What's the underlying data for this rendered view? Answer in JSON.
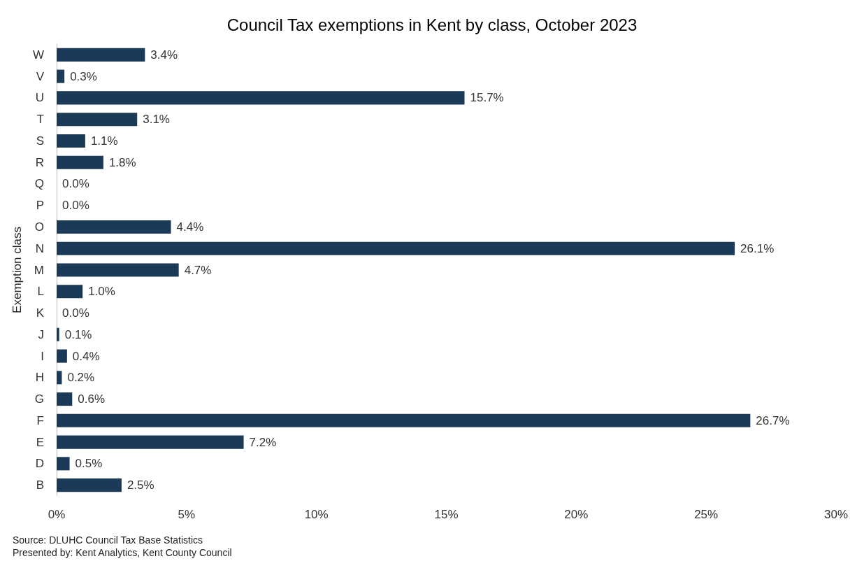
{
  "chart_data": {
    "type": "bar",
    "orientation": "horizontal",
    "title": "Council Tax exemptions in Kent by class, October 2023",
    "ylabel": "Exemption class",
    "categories": [
      "W",
      "V",
      "U",
      "T",
      "S",
      "R",
      "Q",
      "P",
      "O",
      "N",
      "M",
      "L",
      "K",
      "J",
      "I",
      "H",
      "G",
      "F",
      "E",
      "D",
      "B"
    ],
    "values": [
      3.4,
      0.3,
      15.7,
      3.1,
      1.1,
      1.8,
      0.0,
      0.0,
      4.4,
      26.1,
      4.7,
      1.0,
      0.0,
      0.1,
      0.4,
      0.2,
      0.6,
      26.7,
      7.2,
      0.5,
      2.5
    ],
    "value_labels": [
      "3.4%",
      "0.3%",
      "15.7%",
      "3.1%",
      "1.1%",
      "1.8%",
      "0.0%",
      "0.0%",
      "4.4%",
      "26.1%",
      "4.7%",
      "1.0%",
      "0.0%",
      "0.1%",
      "0.4%",
      "0.2%",
      "0.6%",
      "26.7%",
      "7.2%",
      "0.5%",
      "2.5%"
    ],
    "color": "#1b3a57",
    "xlim": [
      0,
      30
    ],
    "xticks": [
      {
        "value": 0,
        "label": "0%"
      },
      {
        "value": 5,
        "label": "5%"
      },
      {
        "value": 10,
        "label": "10%"
      },
      {
        "value": 15,
        "label": "15%"
      },
      {
        "value": 20,
        "label": "20%"
      },
      {
        "value": 25,
        "label": "25%"
      },
      {
        "value": 30,
        "label": "30%"
      }
    ],
    "grid": false,
    "annotations": [
      "Source: DLUHC Council Tax Base Statistics",
      "Presented by: Kent Analytics, Kent County Council"
    ]
  }
}
